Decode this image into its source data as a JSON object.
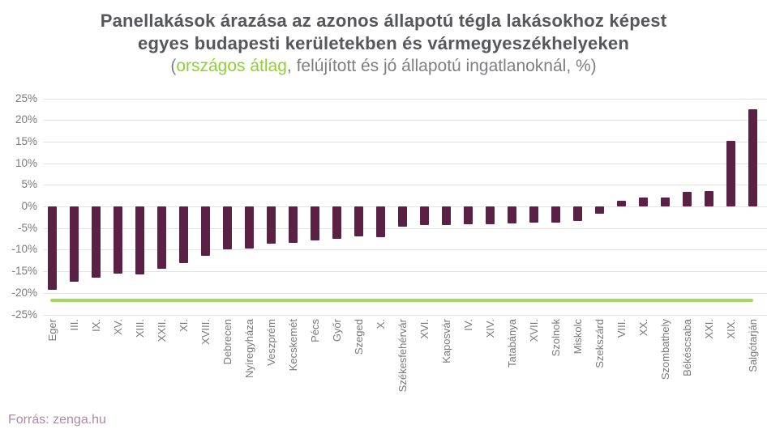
{
  "title": {
    "line1": "Panellakások árazása az azonos állapotú tégla lakásokhoz képest",
    "line2": "egyes budapesti kerületekben és vármegyeszékhelyeken",
    "line3_prefix": "(",
    "line3_highlight": "országos átlag",
    "line3_suffix": ", felújított és jó állapotú ingatlanoknál, %)"
  },
  "footer": {
    "source_label": "Forrás: zenga.hu"
  },
  "colors": {
    "bar": "#5a2145",
    "average_line": "#a3d95c",
    "highlight_text": "#8fd133",
    "title_text": "#56575a",
    "subtitle_text": "#7d7f82",
    "axis_text": "#7a7a7a",
    "gridline": "#e3e3e3",
    "source_text": "#a98ba5"
  },
  "chart_data": {
    "type": "bar",
    "title": "Panellakások árazása az azonos állapotú tégla lakásokhoz képest egyes budapesti kerületekben és vármegyeszékhelyeken",
    "subtitle": "(országos átlag, felújított és jó állapotú ingatlanoknál, %)",
    "xlabel": "",
    "ylabel": "",
    "ylim": [
      -25,
      25
    ],
    "grid": true,
    "legend": "none",
    "categories": [
      "Eger",
      "III.",
      "IX.",
      "XV.",
      "XIII.",
      "XXII.",
      "XI.",
      "XVIII.",
      "Debrecen",
      "Nyíregyháza",
      "Veszprém",
      "Kecskemét",
      "Pécs",
      "Győr",
      "Szeged",
      "X.",
      "Székesfehérvár",
      "XVI.",
      "Kaposvár",
      "IV.",
      "XIV.",
      "Tatabánya",
      "XVII.",
      "Szolnok",
      "Miskolc",
      "Szekszárd",
      "VIII.",
      "XX.",
      "Szombathely",
      "Békéscsaba",
      "XXI.",
      "XIX.",
      "Salgótarján"
    ],
    "values": [
      -19.2,
      -17.5,
      -16.5,
      -15.6,
      -15.8,
      -14.5,
      -13.2,
      -11.5,
      -10.0,
      -9.8,
      -8.6,
      -8.5,
      -7.9,
      -7.5,
      -6.9,
      -7.1,
      -4.6,
      -4.4,
      -4.4,
      -4.2,
      -4.1,
      -4.0,
      -3.8,
      -3.7,
      -3.3,
      -1.7,
      1.3,
      2.0,
      2.1,
      3.4,
      3.5,
      15.2,
      22.5
    ],
    "average_line": {
      "label": "országos átlag",
      "value": -21.8
    },
    "yticks": [
      {
        "value": 25,
        "label": "25%"
      },
      {
        "value": 20,
        "label": "20%"
      },
      {
        "value": 15,
        "label": "15%"
      },
      {
        "value": 10,
        "label": "10%"
      },
      {
        "value": 5,
        "label": "5%"
      },
      {
        "value": 0,
        "label": "0%"
      },
      {
        "value": -5,
        "label": "-5%"
      },
      {
        "value": -10,
        "label": "-10%"
      },
      {
        "value": -15,
        "label": "-15%"
      },
      {
        "value": -20,
        "label": "-20%"
      },
      {
        "value": -25,
        "label": "-25%"
      }
    ]
  }
}
